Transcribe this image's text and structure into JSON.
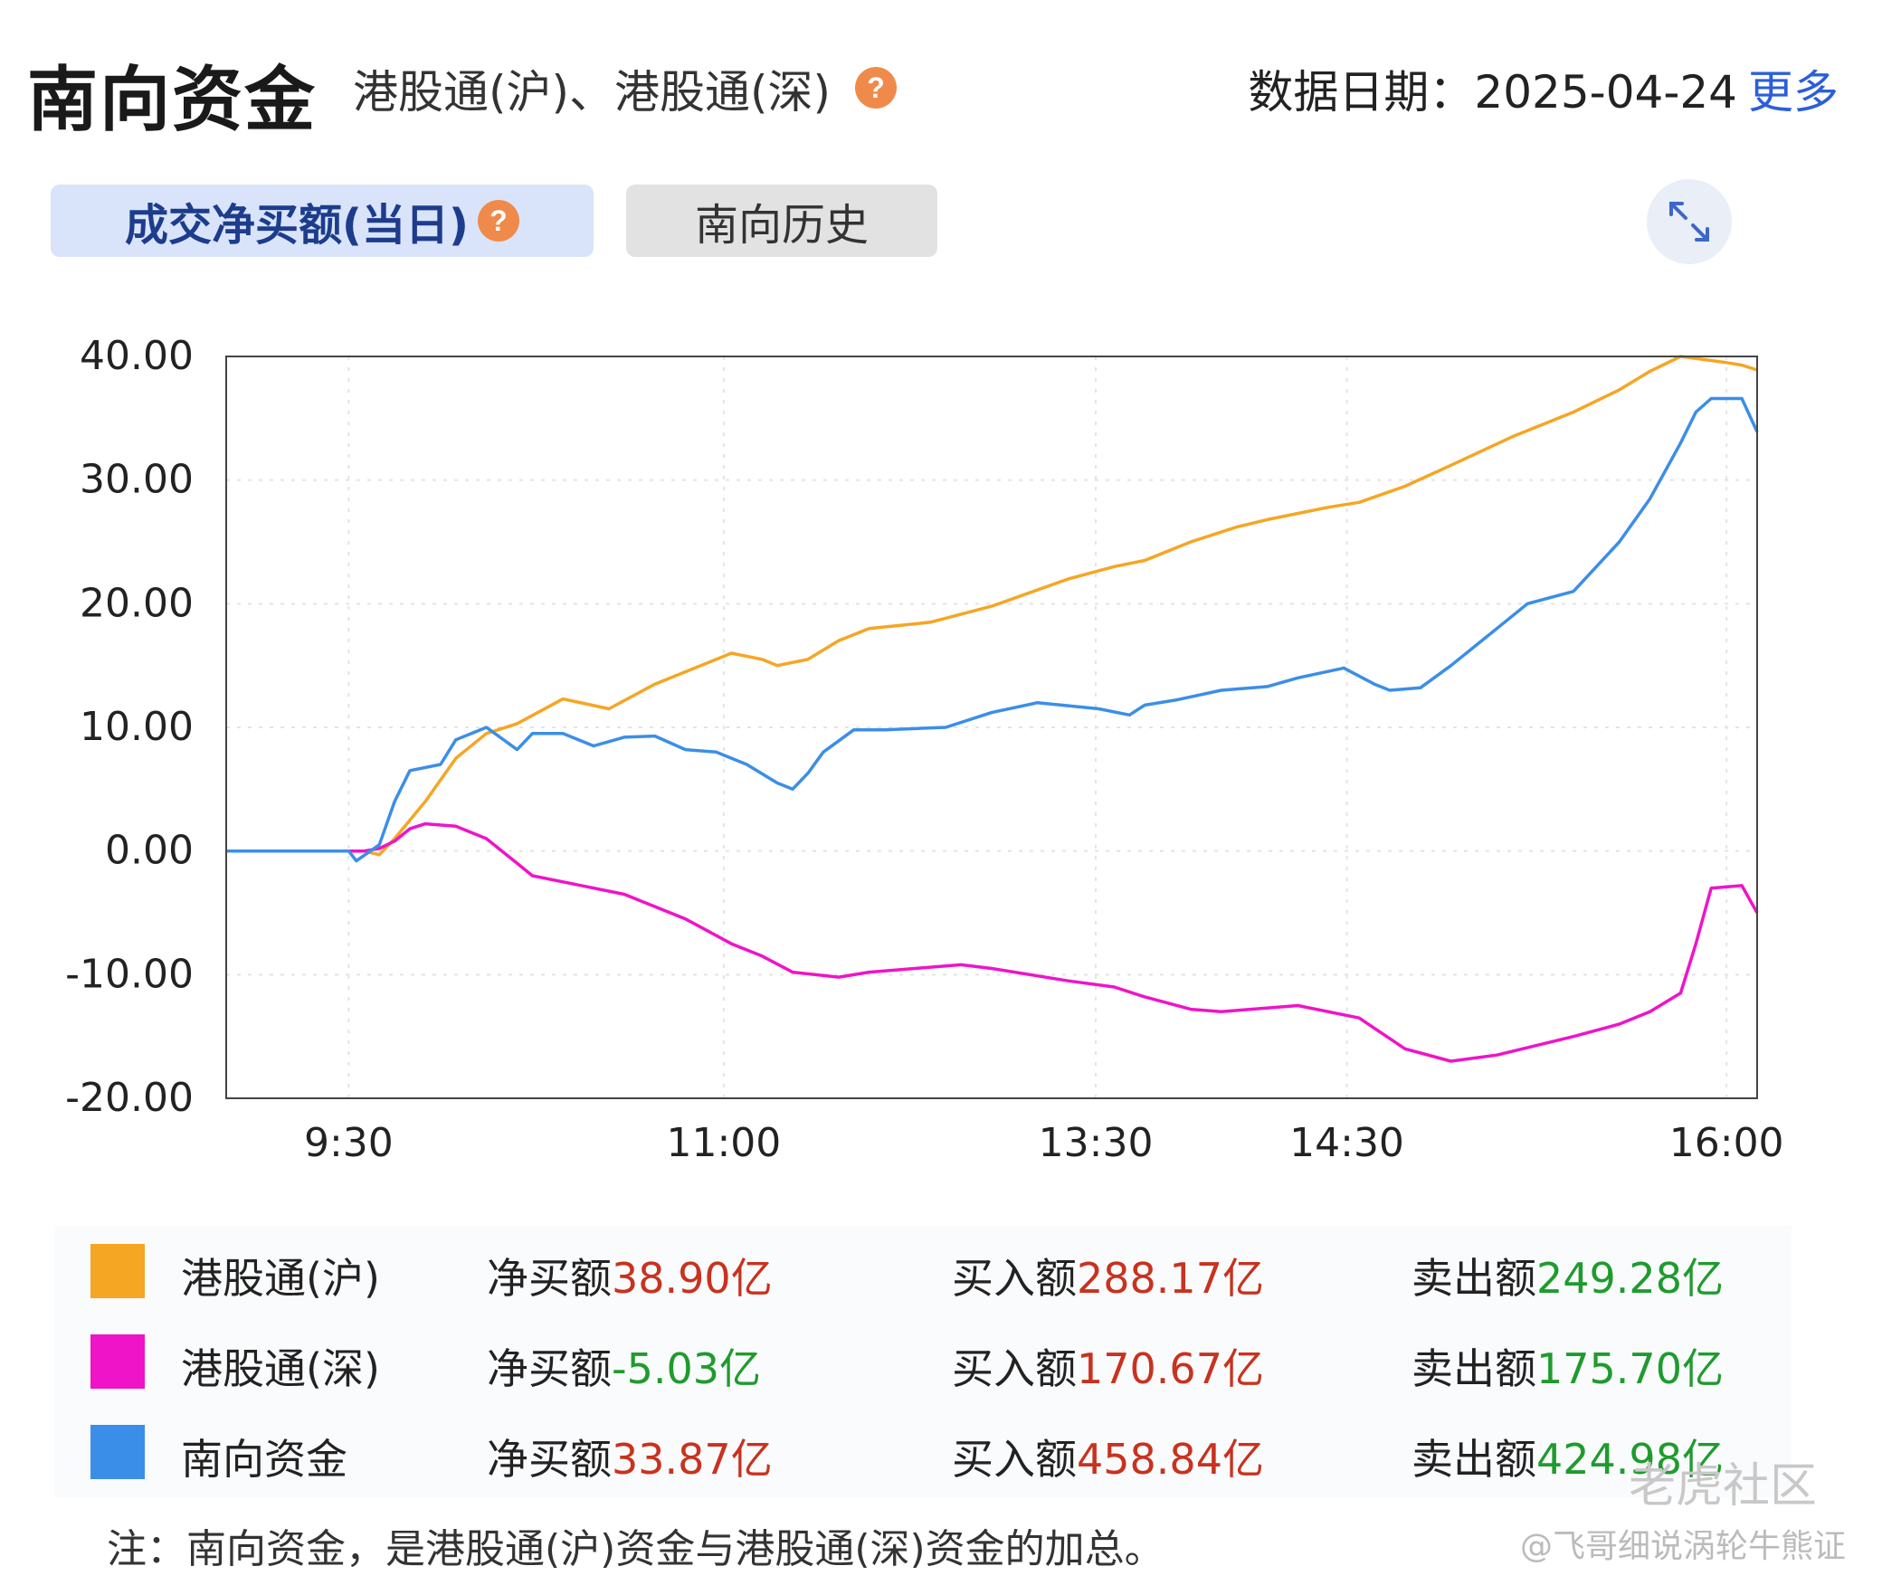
{
  "header": {
    "title": "南向资金",
    "subtitle": "港股通(沪)、港股通(深)",
    "help_symbol": "?",
    "date_label": "数据日期：",
    "date_value": "2025-04-24",
    "more_label": "更多"
  },
  "tabs": {
    "net_buy_label": "成交净买额(当日)",
    "history_label": "南向历史"
  },
  "chart_data": {
    "type": "line",
    "x_ticks": [
      "9:30",
      "11:00",
      "13:30",
      "14:30",
      "16:00"
    ],
    "y_ticks": [
      "40.00",
      "30.00",
      "20.00",
      "10.00",
      "0.00",
      "-10.00",
      "-20.00"
    ],
    "ylim": [
      -20,
      40
    ],
    "xlim": [
      0,
      1
    ],
    "grid": true,
    "x_tick_pos": [
      0.08,
      0.325,
      0.568,
      0.732,
      0.98
    ],
    "series": [
      {
        "name": "港股通(沪)",
        "color": "#f5a623",
        "x": [
          0,
          0.06,
          0.09,
          0.1,
          0.11,
          0.13,
          0.15,
          0.17,
          0.19,
          0.22,
          0.25,
          0.28,
          0.31,
          0.33,
          0.35,
          0.36,
          0.38,
          0.4,
          0.42,
          0.46,
          0.5,
          0.55,
          0.58,
          0.6,
          0.63,
          0.66,
          0.68,
          0.72,
          0.74,
          0.77,
          0.8,
          0.84,
          0.88,
          0.91,
          0.93,
          0.95,
          0.98,
          0.99,
          1.0
        ],
        "values": [
          0,
          0,
          0,
          -0.3,
          1.0,
          4.0,
          7.5,
          9.5,
          10.3,
          12.3,
          11.5,
          13.5,
          15.0,
          16.0,
          15.5,
          15.0,
          15.5,
          17.0,
          18.0,
          18.5,
          19.8,
          22.0,
          23.0,
          23.5,
          25.0,
          26.2,
          26.8,
          27.8,
          28.2,
          29.5,
          31.2,
          33.5,
          35.5,
          37.3,
          38.8,
          40.0,
          39.5,
          39.3,
          38.9
        ]
      },
      {
        "name": "港股通(深)",
        "color": "#ef14c8",
        "x": [
          0,
          0.06,
          0.09,
          0.1,
          0.11,
          0.12,
          0.13,
          0.15,
          0.17,
          0.19,
          0.2,
          0.22,
          0.26,
          0.3,
          0.33,
          0.35,
          0.37,
          0.4,
          0.42,
          0.48,
          0.5,
          0.55,
          0.58,
          0.6,
          0.63,
          0.65,
          0.7,
          0.74,
          0.77,
          0.8,
          0.83,
          0.88,
          0.91,
          0.93,
          0.95,
          0.96,
          0.97,
          0.99,
          1.0
        ],
        "values": [
          0,
          0,
          0,
          0.2,
          0.8,
          1.8,
          2.2,
          2.0,
          1.0,
          -1.0,
          -2.0,
          -2.5,
          -3.5,
          -5.5,
          -7.5,
          -8.5,
          -9.8,
          -10.2,
          -9.8,
          -9.2,
          -9.5,
          -10.5,
          -11.0,
          -11.8,
          -12.8,
          -13.0,
          -12.5,
          -13.5,
          -16.0,
          -17.0,
          -16.5,
          -15.0,
          -14.0,
          -13.0,
          -11.5,
          -7.5,
          -3.0,
          -2.8,
          -5.0
        ]
      },
      {
        "name": "南向资金",
        "color": "#3b8ee8",
        "x": [
          0,
          0.06,
          0.08,
          0.085,
          0.1,
          0.11,
          0.12,
          0.14,
          0.15,
          0.17,
          0.19,
          0.2,
          0.22,
          0.24,
          0.26,
          0.28,
          0.3,
          0.32,
          0.34,
          0.36,
          0.37,
          0.38,
          0.39,
          0.41,
          0.43,
          0.47,
          0.5,
          0.53,
          0.57,
          0.59,
          0.6,
          0.62,
          0.65,
          0.68,
          0.7,
          0.73,
          0.75,
          0.76,
          0.78,
          0.8,
          0.83,
          0.85,
          0.88,
          0.91,
          0.93,
          0.95,
          0.96,
          0.97,
          0.99,
          1.0
        ],
        "values": [
          0,
          0,
          0,
          -0.8,
          0.5,
          4.0,
          6.5,
          7.0,
          9.0,
          10.0,
          8.2,
          9.5,
          9.5,
          8.5,
          9.2,
          9.3,
          8.2,
          8.0,
          7.0,
          5.5,
          5.0,
          6.3,
          8.0,
          9.8,
          9.8,
          10.0,
          11.2,
          12.0,
          11.5,
          11.0,
          11.8,
          12.2,
          13.0,
          13.3,
          14.0,
          14.8,
          13.5,
          13.0,
          13.2,
          15.0,
          18.0,
          20.0,
          21.0,
          25.0,
          28.5,
          33.0,
          35.5,
          36.6,
          36.6,
          33.9
        ]
      }
    ]
  },
  "legend": {
    "net_label": "净买额",
    "buy_label": "买入额",
    "sell_label": "卖出额",
    "rows": [
      {
        "name": "港股通(沪)",
        "color": "#f5a623",
        "net": "38.90亿",
        "buy": "288.17亿",
        "sell": "249.28亿"
      },
      {
        "name": "港股通(深)",
        "color": "#ef14c8",
        "net": "-5.03亿",
        "buy": "170.67亿",
        "sell": "175.70亿"
      },
      {
        "name": "南向资金",
        "color": "#3b8ee8",
        "net": "33.87亿",
        "buy": "458.84亿",
        "sell": "424.98亿"
      }
    ]
  },
  "note": "注：南向资金，是港股通(沪)资金与港股通(深)资金的加总。",
  "watermark": {
    "logo_text": "老虎社区",
    "handle": "@飞哥细说涡轮牛熊证"
  }
}
